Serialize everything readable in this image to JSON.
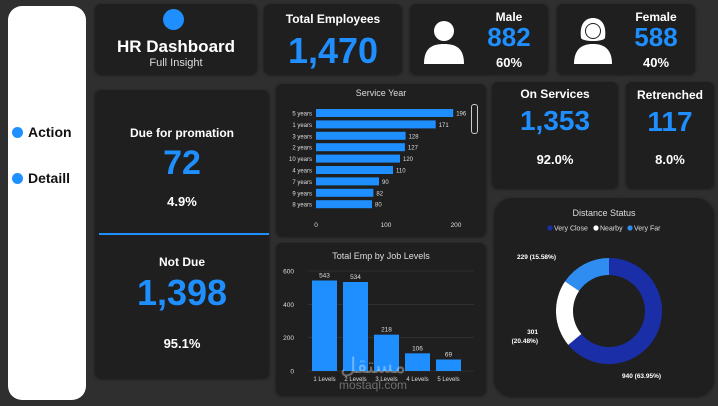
{
  "nav": {
    "items": [
      {
        "label": "Action"
      },
      {
        "label": "Detaill"
      }
    ]
  },
  "header": {
    "title": "HR Dashboard",
    "subtitle": "Full Insight"
  },
  "total": {
    "label": "Total Employees",
    "value": "1,470"
  },
  "male": {
    "label": "Male",
    "value": "882",
    "pct": "60%"
  },
  "female": {
    "label": "Female",
    "value": "588",
    "pct": "40%"
  },
  "promotion": {
    "due_label": "Due for promation",
    "due_value": "72",
    "due_pct": "4.9%",
    "notdue_label": "Not Due",
    "notdue_value": "1,398",
    "notdue_pct": "95.1%"
  },
  "on_services": {
    "label": "On Services",
    "value": "1,353",
    "pct": "92.0%"
  },
  "retrenched": {
    "label": "Retrenched",
    "value": "117",
    "pct": "8.0%"
  },
  "watermark": {
    "arabic": "مستقل",
    "latin": "mostaql.com"
  },
  "colors": {
    "accent": "#1f8fff",
    "very_close": "#1a2ea8",
    "nearby": "#ffffff",
    "very_far": "#2f8df2"
  },
  "chart_data": [
    {
      "type": "bar",
      "orientation": "horizontal",
      "title": "Service Year",
      "categories": [
        "5 years",
        "1 years",
        "3 years",
        "2 years",
        "10 years",
        "4 years",
        "7 years",
        "9 years",
        "8 years"
      ],
      "values": [
        196,
        171,
        128,
        127,
        120,
        110,
        90,
        82,
        80
      ],
      "xticks": [
        "0",
        "100",
        "200"
      ],
      "xlim": [
        0,
        200
      ]
    },
    {
      "type": "bar",
      "title": "Total Emp by Job Levels",
      "categories": [
        "1 Levels",
        "2 Levels",
        "3 Levels",
        "4 Levels",
        "5 Levels"
      ],
      "values": [
        543,
        534,
        218,
        106,
        69
      ],
      "yticks": [
        "0",
        "200",
        "400",
        "600"
      ],
      "ylim": [
        0,
        600
      ]
    },
    {
      "type": "pie",
      "donut": true,
      "title": "Distance Status",
      "legend": [
        "Very Close",
        "Nearby",
        "Very Far"
      ],
      "legend_position": "top",
      "slices": [
        {
          "name": "Very Close",
          "value": 940,
          "label": "940 (63.95%)"
        },
        {
          "name": "Nearby",
          "value": 301,
          "label": "301 (20.48%)"
        },
        {
          "name": "Very Far",
          "value": 229,
          "label": "229 (15.58%)"
        }
      ]
    }
  ]
}
